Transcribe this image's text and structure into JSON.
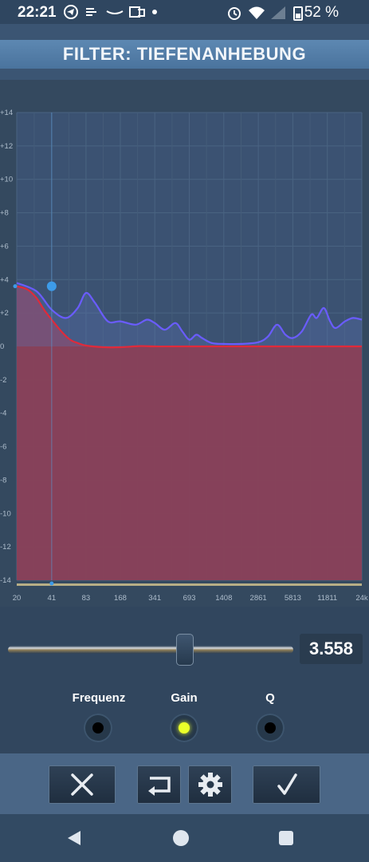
{
  "status_bar": {
    "time": "22:21",
    "battery": "52 %",
    "icons": [
      "telegram-icon",
      "data-saver-icon",
      "amazon-icon",
      "outlook-icon",
      "dot-icon",
      "alarm-icon",
      "wifi-icon",
      "signal-icon",
      "battery-icon"
    ]
  },
  "header": {
    "title": "FILTER: TIEFENANHEBUNG"
  },
  "chart_data": {
    "type": "line",
    "y_ticks": [
      "+14",
      "+12",
      "+10",
      "+8",
      "+6",
      "+4",
      "+2",
      "0",
      "-2",
      "-4",
      "-6",
      "-8",
      "-10",
      "-12",
      "-14"
    ],
    "x_ticks": [
      "20",
      "41",
      "83",
      "168",
      "341",
      "693",
      "1408",
      "2861",
      "5813",
      "11811",
      "24k"
    ],
    "ylim": [
      -14,
      14
    ],
    "xlabel": "",
    "ylabel": "",
    "series": [
      {
        "role": "total-response",
        "color": "#6a5cff",
        "points": [
          [
            20,
            3.8
          ],
          [
            30,
            3.3
          ],
          [
            41,
            2.2
          ],
          [
            55,
            1.7
          ],
          [
            70,
            2.3
          ],
          [
            83,
            3.2
          ],
          [
            100,
            2.6
          ],
          [
            130,
            1.5
          ],
          [
            168,
            1.5
          ],
          [
            230,
            1.3
          ],
          [
            290,
            1.6
          ],
          [
            341,
            1.4
          ],
          [
            420,
            1.0
          ],
          [
            520,
            1.4
          ],
          [
            600,
            0.9
          ],
          [
            693,
            0.4
          ],
          [
            800,
            0.7
          ],
          [
            900,
            0.5
          ],
          [
            1100,
            0.2
          ],
          [
            1408,
            0.15
          ],
          [
            2000,
            0.15
          ],
          [
            2861,
            0.25
          ],
          [
            3500,
            0.6
          ],
          [
            4200,
            1.3
          ],
          [
            5000,
            0.7
          ],
          [
            5813,
            0.5
          ],
          [
            7000,
            0.9
          ],
          [
            8500,
            1.9
          ],
          [
            9500,
            1.7
          ],
          [
            11000,
            2.3
          ],
          [
            12500,
            1.5
          ],
          [
            14000,
            1.1
          ],
          [
            17000,
            1.5
          ],
          [
            20000,
            1.7
          ],
          [
            24000,
            1.6
          ]
        ]
      },
      {
        "role": "filter-response",
        "color": "#e02a3a",
        "points": [
          [
            20,
            3.6
          ],
          [
            25,
            3.4
          ],
          [
            30,
            2.9
          ],
          [
            35,
            2.2
          ],
          [
            41,
            1.6
          ],
          [
            50,
            0.9
          ],
          [
            60,
            0.4
          ],
          [
            70,
            0.2
          ],
          [
            83,
            0.05
          ],
          [
            120,
            -0.05
          ],
          [
            168,
            -0.05
          ],
          [
            250,
            0.02
          ],
          [
            341,
            0.0
          ],
          [
            693,
            0.0
          ],
          [
            24000,
            0.0
          ]
        ]
      }
    ],
    "control_points": [
      {
        "x": 41,
        "y": 3.6,
        "color": "#3d9be9"
      },
      {
        "x": 20,
        "y": 3.6,
        "color": "#3d9be9"
      },
      {
        "x": 41,
        "y": -14.3,
        "color": "#3d9be9"
      }
    ],
    "fill_color": "#8a4058"
  },
  "slider": {
    "value": "3.558",
    "position": 0.62
  },
  "params": [
    {
      "label": "Frequenz",
      "active": false
    },
    {
      "label": "Gain",
      "active": true
    },
    {
      "label": "Q",
      "active": false
    }
  ],
  "actions": [
    {
      "name": "cancel-button",
      "icon": "close-icon"
    },
    {
      "name": "reset-button",
      "icon": "undo-icon"
    },
    {
      "name": "settings-button",
      "icon": "gear-icon"
    },
    {
      "name": "confirm-button",
      "icon": "check-icon"
    }
  ],
  "navbar": {
    "icons": [
      "back-icon",
      "home-icon",
      "recents-icon"
    ]
  }
}
